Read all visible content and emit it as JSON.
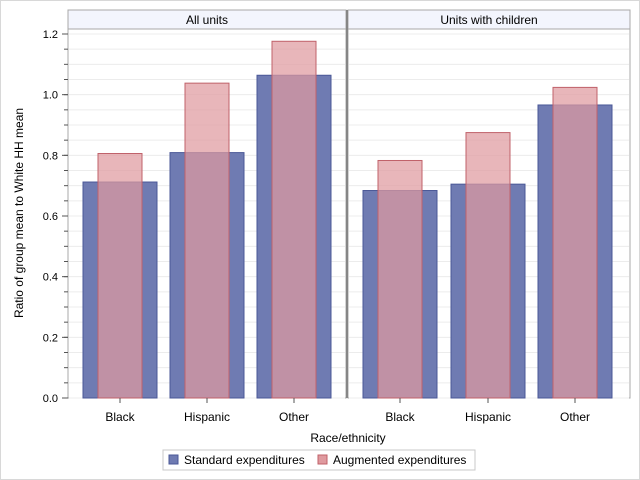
{
  "chart_data": {
    "type": "bar",
    "panels": [
      {
        "title": "All units",
        "categories": [
          "Black",
          "Hispanic",
          "Other"
        ],
        "series": [
          {
            "name": "Standard expenditures",
            "values": [
              0.712,
              0.809,
              1.064
            ]
          },
          {
            "name": "Augmented expenditures",
            "values": [
              0.806,
              1.038,
              1.176
            ]
          }
        ]
      },
      {
        "title": "Units with children",
        "categories": [
          "Black",
          "Hispanic",
          "Other"
        ],
        "series": [
          {
            "name": "Standard expenditures",
            "values": [
              0.684,
              0.705,
              0.966
            ]
          },
          {
            "name": "Augmented expenditures",
            "values": [
              0.783,
              0.875,
              1.024
            ]
          }
        ]
      }
    ],
    "xlabel": "Race/ethnicity",
    "ylabel": "Ratio of group mean to White HH mean",
    "ylim": [
      0,
      1.2
    ],
    "yticks": [
      "0.0",
      "0.2",
      "0.4",
      "0.6",
      "0.8",
      "1.0",
      "1.2"
    ],
    "grid": true,
    "legend_position": "bottom",
    "colors": {
      "standard_fill": "#6f7bb2",
      "standard_stroke": "#4a5797",
      "augmented_fill": "#df9a9f",
      "augmented_stroke": "#c0616a",
      "panel_header_bg": "#f3f5fd",
      "grid": "#ececec"
    }
  }
}
